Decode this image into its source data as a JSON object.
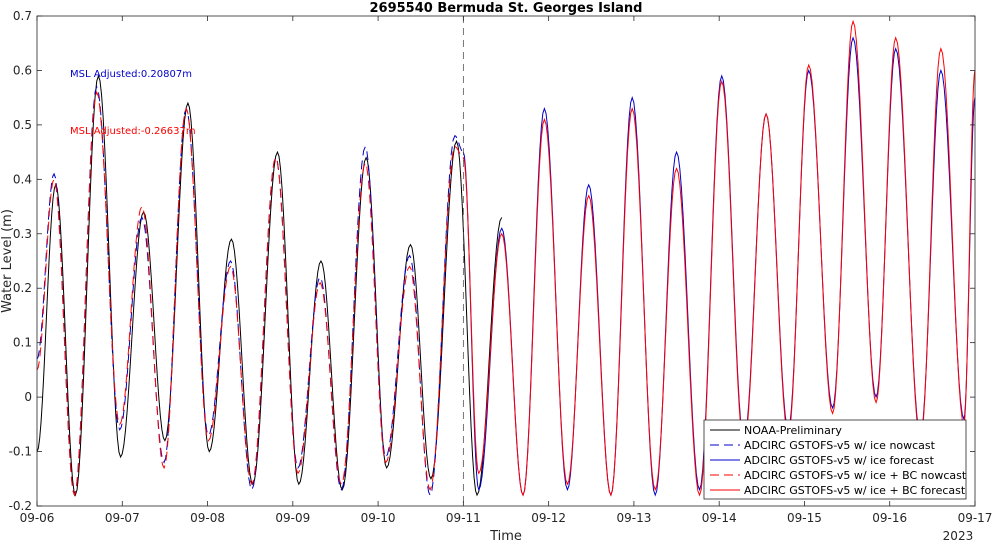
{
  "chart_data": {
    "type": "line",
    "title": "2695540 Bermuda St. Georges Island",
    "xlabel": "Time",
    "ylabel": "Water Level (m)",
    "x_ticks": [
      "09-06",
      "09-07",
      "09-08",
      "09-09",
      "09-10",
      "09-11",
      "09-12",
      "09-13",
      "09-14",
      "09-15",
      "09-16",
      "09-17"
    ],
    "x_year_label": "2023",
    "xlim_days": [
      6,
      17
    ],
    "ylim": [
      -0.2,
      0.7
    ],
    "y_ticks": [
      "-0.2",
      "-0.1",
      "0",
      "0.1",
      "0.2",
      "0.3",
      "0.4",
      "0.5",
      "0.6",
      "0.7"
    ],
    "nowcast_forecast_divider_day": 11,
    "grid": false,
    "legend_position": "bottom-right",
    "annotations": [
      {
        "text": "MSL Adjusted:0.20807m",
        "color": "#0000cc"
      },
      {
        "text": "MSL Adjusted:-0.26637m",
        "color": "#ff0000"
      }
    ],
    "series": [
      {
        "name": "NOAA-Preliminary",
        "color": "#000000",
        "style": "solid",
        "highs": [
          [
            6.22,
            0.39
          ],
          [
            6.72,
            0.59
          ],
          [
            7.25,
            0.34
          ],
          [
            7.77,
            0.54
          ],
          [
            8.28,
            0.29
          ],
          [
            8.82,
            0.45
          ],
          [
            9.33,
            0.25
          ],
          [
            9.86,
            0.44
          ],
          [
            10.38,
            0.28
          ],
          [
            10.92,
            0.47
          ],
          [
            11.45,
            0.33
          ]
        ],
        "lows": [
          [
            6.0,
            -0.1
          ],
          [
            6.45,
            -0.18
          ],
          [
            6.98,
            -0.11
          ],
          [
            7.5,
            -0.08
          ],
          [
            8.02,
            -0.1
          ],
          [
            8.53,
            -0.16
          ],
          [
            9.07,
            -0.16
          ],
          [
            9.58,
            -0.17
          ],
          [
            10.1,
            -0.13
          ],
          [
            10.62,
            -0.15
          ],
          [
            11.16,
            -0.18
          ]
        ]
      },
      {
        "name": "ADCIRC GSTOFS-v5 w/ ice nowcast",
        "color": "#0000cc",
        "style": "dashed",
        "highs": [
          [
            6.2,
            0.41
          ],
          [
            6.7,
            0.57
          ],
          [
            7.23,
            0.33
          ],
          [
            7.75,
            0.53
          ],
          [
            8.27,
            0.25
          ],
          [
            8.8,
            0.44
          ],
          [
            9.32,
            0.22
          ],
          [
            9.85,
            0.46
          ],
          [
            10.37,
            0.26
          ],
          [
            10.9,
            0.48
          ]
        ],
        "lows": [
          [
            6.0,
            0.07
          ],
          [
            6.44,
            -0.18
          ],
          [
            6.97,
            -0.06
          ],
          [
            7.49,
            -0.12
          ],
          [
            8.01,
            -0.07
          ],
          [
            8.52,
            -0.17
          ],
          [
            9.06,
            -0.13
          ],
          [
            9.57,
            -0.17
          ],
          [
            10.09,
            -0.11
          ],
          [
            10.61,
            -0.18
          ],
          [
            11.0,
            0.45
          ]
        ]
      },
      {
        "name": "ADCIRC GSTOFS-v5 w/ ice forecast",
        "color": "#0000cc",
        "style": "solid",
        "highs": [
          [
            11.45,
            0.31
          ],
          [
            11.95,
            0.53
          ],
          [
            12.47,
            0.39
          ],
          [
            12.98,
            0.55
          ],
          [
            13.5,
            0.45
          ],
          [
            14.03,
            0.59
          ],
          [
            14.55,
            0.52
          ],
          [
            15.05,
            0.6
          ],
          [
            15.57,
            0.66
          ],
          [
            16.07,
            0.64
          ],
          [
            16.6,
            0.6
          ],
          [
            17.0,
            0.55
          ]
        ],
        "lows": [
          [
            11.0,
            0.45
          ],
          [
            11.18,
            -0.17
          ],
          [
            11.7,
            -0.18
          ],
          [
            12.22,
            -0.17
          ],
          [
            12.73,
            -0.18
          ],
          [
            13.25,
            -0.18
          ],
          [
            13.77,
            -0.17
          ],
          [
            14.29,
            -0.08
          ],
          [
            14.81,
            -0.06
          ],
          [
            15.33,
            -0.02
          ],
          [
            15.84,
            0.0
          ],
          [
            16.36,
            -0.07
          ],
          [
            16.87,
            -0.04
          ]
        ]
      },
      {
        "name": "ADCIRC GSTOFS-v5 w/ ice + BC nowcast",
        "color": "#ff0000",
        "style": "dashed",
        "highs": [
          [
            6.2,
            0.4
          ],
          [
            6.7,
            0.56
          ],
          [
            7.23,
            0.35
          ],
          [
            7.75,
            0.53
          ],
          [
            8.27,
            0.24
          ],
          [
            8.8,
            0.44
          ],
          [
            9.32,
            0.21
          ],
          [
            9.85,
            0.43
          ],
          [
            10.37,
            0.24
          ],
          [
            10.9,
            0.46
          ]
        ],
        "lows": [
          [
            6.0,
            0.05
          ],
          [
            6.44,
            -0.18
          ],
          [
            6.97,
            -0.05
          ],
          [
            7.49,
            -0.13
          ],
          [
            8.01,
            -0.08
          ],
          [
            8.52,
            -0.16
          ],
          [
            9.06,
            -0.14
          ],
          [
            9.57,
            -0.16
          ],
          [
            10.09,
            -0.12
          ],
          [
            10.61,
            -0.17
          ],
          [
            11.0,
            0.44
          ]
        ]
      },
      {
        "name": "ADCIRC GSTOFS-v5 w/ ice + BC forecast",
        "color": "#ff0000",
        "style": "solid",
        "highs": [
          [
            11.45,
            0.3
          ],
          [
            11.95,
            0.51
          ],
          [
            12.47,
            0.37
          ],
          [
            12.98,
            0.53
          ],
          [
            13.5,
            0.42
          ],
          [
            14.03,
            0.58
          ],
          [
            14.55,
            0.52
          ],
          [
            15.05,
            0.61
          ],
          [
            15.57,
            0.69
          ],
          [
            16.07,
            0.66
          ],
          [
            16.6,
            0.64
          ],
          [
            17.0,
            0.6
          ]
        ],
        "lows": [
          [
            11.0,
            0.44
          ],
          [
            11.18,
            -0.14
          ],
          [
            11.7,
            -0.18
          ],
          [
            12.22,
            -0.16
          ],
          [
            12.73,
            -0.18
          ],
          [
            13.25,
            -0.17
          ],
          [
            13.77,
            -0.18
          ],
          [
            14.29,
            -0.09
          ],
          [
            14.81,
            -0.07
          ],
          [
            15.33,
            -0.03
          ],
          [
            15.84,
            -0.01
          ],
          [
            16.36,
            -0.08
          ],
          [
            16.87,
            -0.05
          ]
        ]
      }
    ]
  }
}
